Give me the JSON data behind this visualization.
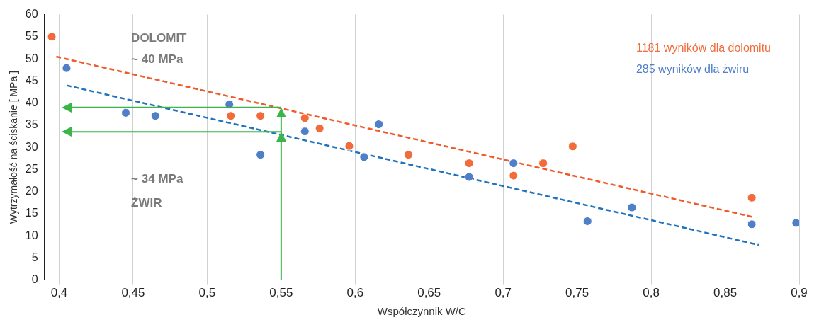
{
  "chart_data": {
    "type": "scatter",
    "xlabel": "Współczynnik W/C",
    "ylabel": "Wytrzymałość na ściskanie [ MPa ]",
    "xlim": [
      0.39,
      0.9
    ],
    "xticks": [
      {
        "value": 0.4,
        "label": "0,4"
      },
      {
        "value": 0.45,
        "label": "0,45"
      },
      {
        "value": 0.5,
        "label": "0,5"
      },
      {
        "value": 0.55,
        "label": "0,55"
      },
      {
        "value": 0.6,
        "label": "0,6"
      },
      {
        "value": 0.65,
        "label": "0,65"
      },
      {
        "value": 0.7,
        "label": "0,7"
      },
      {
        "value": 0.75,
        "label": "0,75"
      },
      {
        "value": 0.8,
        "label": "0,8"
      },
      {
        "value": 0.85,
        "label": "0,85"
      },
      {
        "value": 0.9,
        "label": "0,9"
      }
    ],
    "ylim": [
      0,
      60
    ],
    "yticks": [
      0,
      5,
      10,
      15,
      20,
      25,
      30,
      35,
      40,
      45,
      50,
      55,
      60
    ],
    "grid": "x",
    "legend": "top right",
    "series": [
      {
        "name": "1181 wyników dla dolomitu",
        "marker": "circle",
        "color": "#f26b3a",
        "x": [
          0.395,
          0.516,
          0.536,
          0.566,
          0.576,
          0.596,
          0.636,
          0.677,
          0.707,
          0.727,
          0.747,
          0.868
        ],
        "values": [
          55,
          37.1,
          37.1,
          36.6,
          34.3,
          30.3,
          28.3,
          26.4,
          23.6,
          26.4,
          30.2,
          18.6
        ]
      },
      {
        "name": "285 wyników dla żwiru",
        "marker": "circle",
        "color": "#4f7fc9",
        "x": [
          0.405,
          0.445,
          0.465,
          0.515,
          0.536,
          0.566,
          0.606,
          0.616,
          0.677,
          0.707,
          0.757,
          0.787,
          0.868,
          0.898
        ],
        "values": [
          47.9,
          37.8,
          37.1,
          39.7,
          28.3,
          33.6,
          27.8,
          35.2,
          23.3,
          26.4,
          13.3,
          16.4,
          12.6,
          12.9
        ]
      },
      {
        "type": "line",
        "color": "#f05a28",
        "line_style": "dashed",
        "x": [
          0.398,
          0.868
        ],
        "values": [
          50.5,
          14.3
        ]
      },
      {
        "type": "line",
        "color": "#1f72bd",
        "line_style": "dashed",
        "x": [
          0.405,
          0.873
        ],
        "values": [
          44,
          7.9
        ]
      }
    ],
    "ref_lines": [
      {
        "axis": "x",
        "value": 0.55,
        "color": "#3bb54a"
      },
      {
        "axis": "y",
        "value": 39,
        "color": "#3bb54a"
      },
      {
        "axis": "y",
        "value": 33.5,
        "color": "#3bb54a"
      }
    ],
    "annotations": [
      "DOLOMIT",
      "~ 40 MPa",
      "~ 34 MPa",
      "ŻWIR"
    ]
  }
}
